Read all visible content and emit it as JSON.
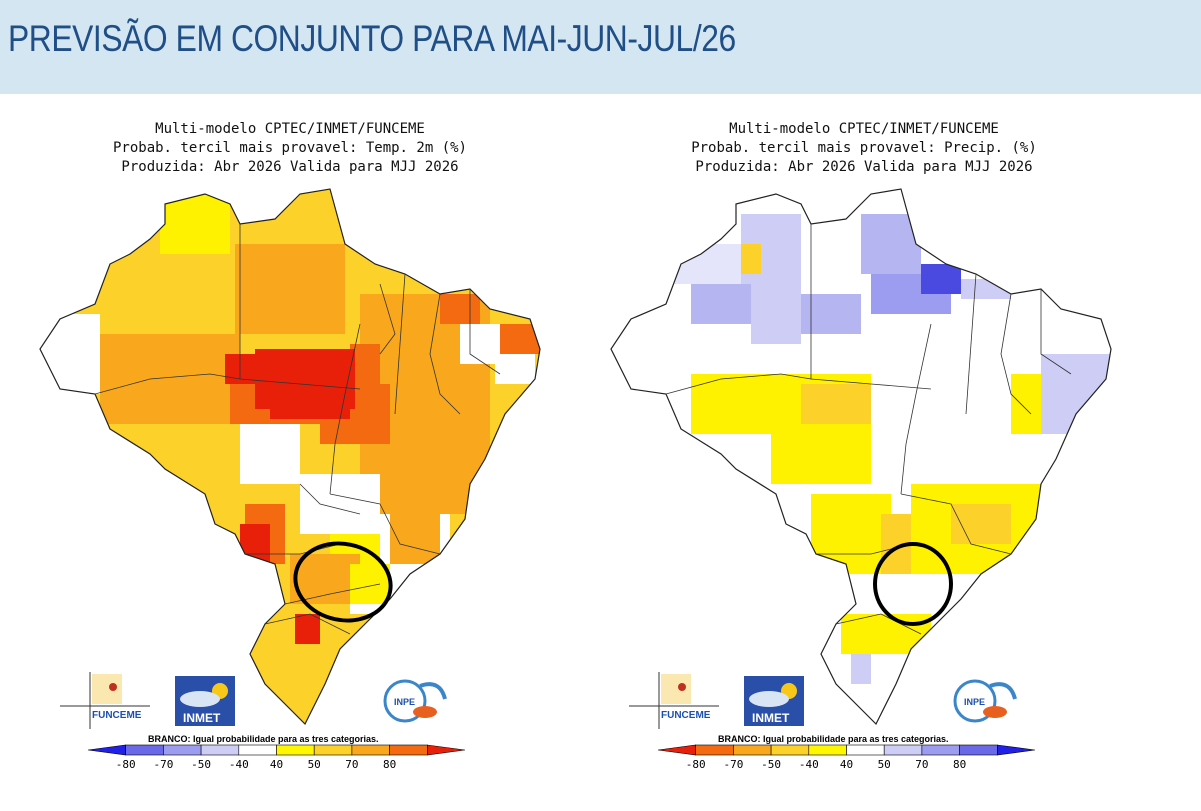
{
  "header": {
    "title": "PREVISÃO EM CONJUNTO PARA MAI-JUN-JUL/26"
  },
  "panels": [
    {
      "title_lines": [
        "Multi-modelo CPTEC/INMET/FUNCEME",
        "Probab. tercil mais provavel: Temp. 2m (%)",
        "Produzida: Abr 2026  Valida para MJJ 2026"
      ],
      "variable": "Temperatura 2m",
      "highlight": "São Paulo / Paraná region circled"
    },
    {
      "title_lines": [
        "Multi-modelo CPTEC/INMET/FUNCEME",
        "Probab. tercil mais provavel: Precip. (%)",
        "Produzida: Abr 2026  Valida para MJJ 2026"
      ],
      "variable": "Precipitação",
      "highlight": "São Paulo / Paraná region circled"
    }
  ],
  "logos": {
    "funceme": "FUNCEME",
    "inmet": "INMET",
    "inpe": "INPE"
  },
  "legend": {
    "note": "BRANCO: Igual probabilidade para as tres categorias.",
    "temp_ticks": [
      "-80",
      "-70",
      "-50",
      "-40",
      "40",
      "50",
      "70",
      "80"
    ],
    "precip_ticks": [
      "-80",
      "-70",
      "-50",
      "-40",
      "40",
      "50",
      "70",
      "80"
    ],
    "temp_colors": [
      "#2020e8",
      "#6a6ae8",
      "#9c9cf0",
      "#cdcdf6",
      "#ffffff",
      "#fff700",
      "#fcd22a",
      "#f9a81e",
      "#f36a10",
      "#e8200a"
    ],
    "precip_colors": [
      "#e8200a",
      "#f36a10",
      "#f9a81e",
      "#fcd22a",
      "#fff700",
      "#ffffff",
      "#cdcdf6",
      "#9c9cf0",
      "#6a6ae8",
      "#2020e8"
    ]
  }
}
